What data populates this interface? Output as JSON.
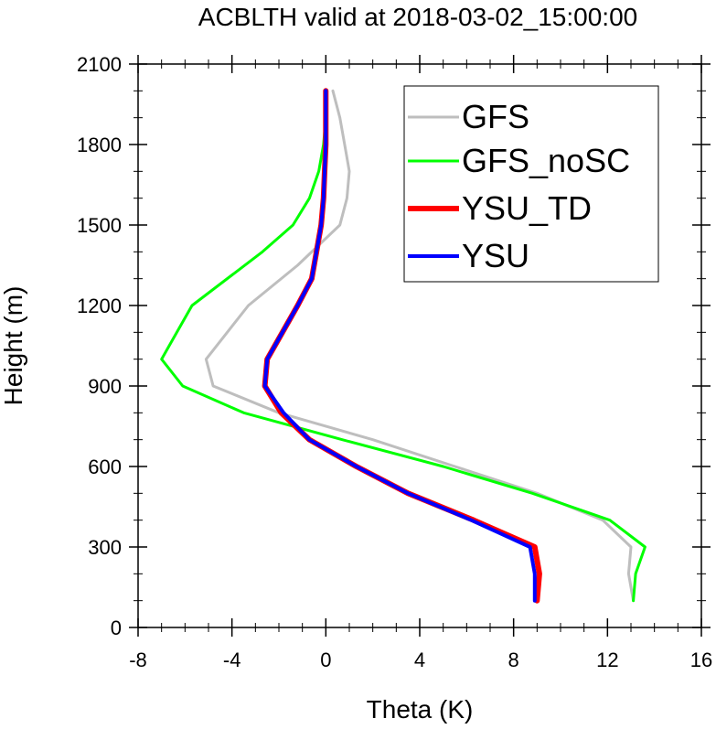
{
  "chart_data": {
    "type": "line",
    "title": "ACBLTH valid at 2018-03-02_15:00:00",
    "xlabel": "Theta (K)",
    "ylabel": "Height (m)",
    "xlim": [
      -8,
      16
    ],
    "ylim": [
      0,
      2100
    ],
    "xticks": [
      "-8",
      "-4",
      "0",
      "4",
      "8",
      "12",
      "16"
    ],
    "yticks": [
      "0",
      "300",
      "600",
      "900",
      "1200",
      "1500",
      "1800",
      "2100"
    ],
    "xtick_values": [
      -8,
      -4,
      0,
      4,
      8,
      12,
      16
    ],
    "ytick_values": [
      0,
      300,
      600,
      900,
      1200,
      1500,
      1800,
      2100
    ],
    "grid": false,
    "legend_position": "top-right",
    "series": [
      {
        "name": "GFS",
        "color": "#bebebe",
        "width": 3,
        "points": [
          [
            13.1,
            100
          ],
          [
            12.9,
            200
          ],
          [
            13.0,
            300
          ],
          [
            11.8,
            400
          ],
          [
            9.0,
            500
          ],
          [
            5.5,
            600
          ],
          [
            2.0,
            700
          ],
          [
            -2.0,
            800
          ],
          [
            -4.8,
            900
          ],
          [
            -5.1,
            1000
          ],
          [
            -3.3,
            1200
          ],
          [
            -1.2,
            1350
          ],
          [
            0.6,
            1500
          ],
          [
            0.9,
            1600
          ],
          [
            1.0,
            1700
          ],
          [
            0.8,
            1800
          ],
          [
            0.6,
            1900
          ],
          [
            0.3,
            2000
          ]
        ]
      },
      {
        "name": "GFS_noSC",
        "color": "#00ff00",
        "width": 3,
        "points": [
          [
            13.1,
            100
          ],
          [
            13.2,
            200
          ],
          [
            13.6,
            300
          ],
          [
            12.1,
            400
          ],
          [
            8.8,
            500
          ],
          [
            5.0,
            600
          ],
          [
            0.7,
            700
          ],
          [
            -3.5,
            800
          ],
          [
            -6.1,
            900
          ],
          [
            -7.0,
            1000
          ],
          [
            -5.7,
            1200
          ],
          [
            -2.7,
            1400
          ],
          [
            -1.4,
            1500
          ],
          [
            -0.7,
            1600
          ],
          [
            -0.3,
            1700
          ],
          [
            -0.1,
            1800
          ],
          [
            0.0,
            1900
          ],
          [
            0.0,
            2000
          ]
        ]
      },
      {
        "name": "YSU_TD",
        "color": "#ff0000",
        "width": 6,
        "points": [
          [
            9.0,
            100
          ],
          [
            9.1,
            200
          ],
          [
            8.9,
            300
          ],
          [
            6.3,
            400
          ],
          [
            3.5,
            500
          ],
          [
            1.3,
            600
          ],
          [
            -0.7,
            700
          ],
          [
            -1.9,
            800
          ],
          [
            -2.6,
            900
          ],
          [
            -2.5,
            1000
          ],
          [
            -1.2,
            1200
          ],
          [
            -0.6,
            1300
          ],
          [
            -0.4,
            1400
          ],
          [
            -0.2,
            1500
          ],
          [
            -0.1,
            1600
          ],
          [
            -0.05,
            1700
          ],
          [
            0.0,
            1800
          ],
          [
            0.0,
            1900
          ],
          [
            0.0,
            2000
          ]
        ]
      },
      {
        "name": "YSU",
        "color": "#0000ff",
        "width": 4,
        "points": [
          [
            8.9,
            100
          ],
          [
            8.9,
            200
          ],
          [
            8.7,
            300
          ],
          [
            6.2,
            400
          ],
          [
            3.5,
            500
          ],
          [
            1.3,
            600
          ],
          [
            -0.7,
            700
          ],
          [
            -1.8,
            800
          ],
          [
            -2.6,
            900
          ],
          [
            -2.5,
            1000
          ],
          [
            -1.2,
            1200
          ],
          [
            -0.6,
            1300
          ],
          [
            -0.4,
            1400
          ],
          [
            -0.2,
            1500
          ],
          [
            -0.1,
            1600
          ],
          [
            -0.05,
            1700
          ],
          [
            0.0,
            1800
          ],
          [
            0.0,
            1900
          ],
          [
            0.0,
            2000
          ]
        ]
      }
    ]
  }
}
